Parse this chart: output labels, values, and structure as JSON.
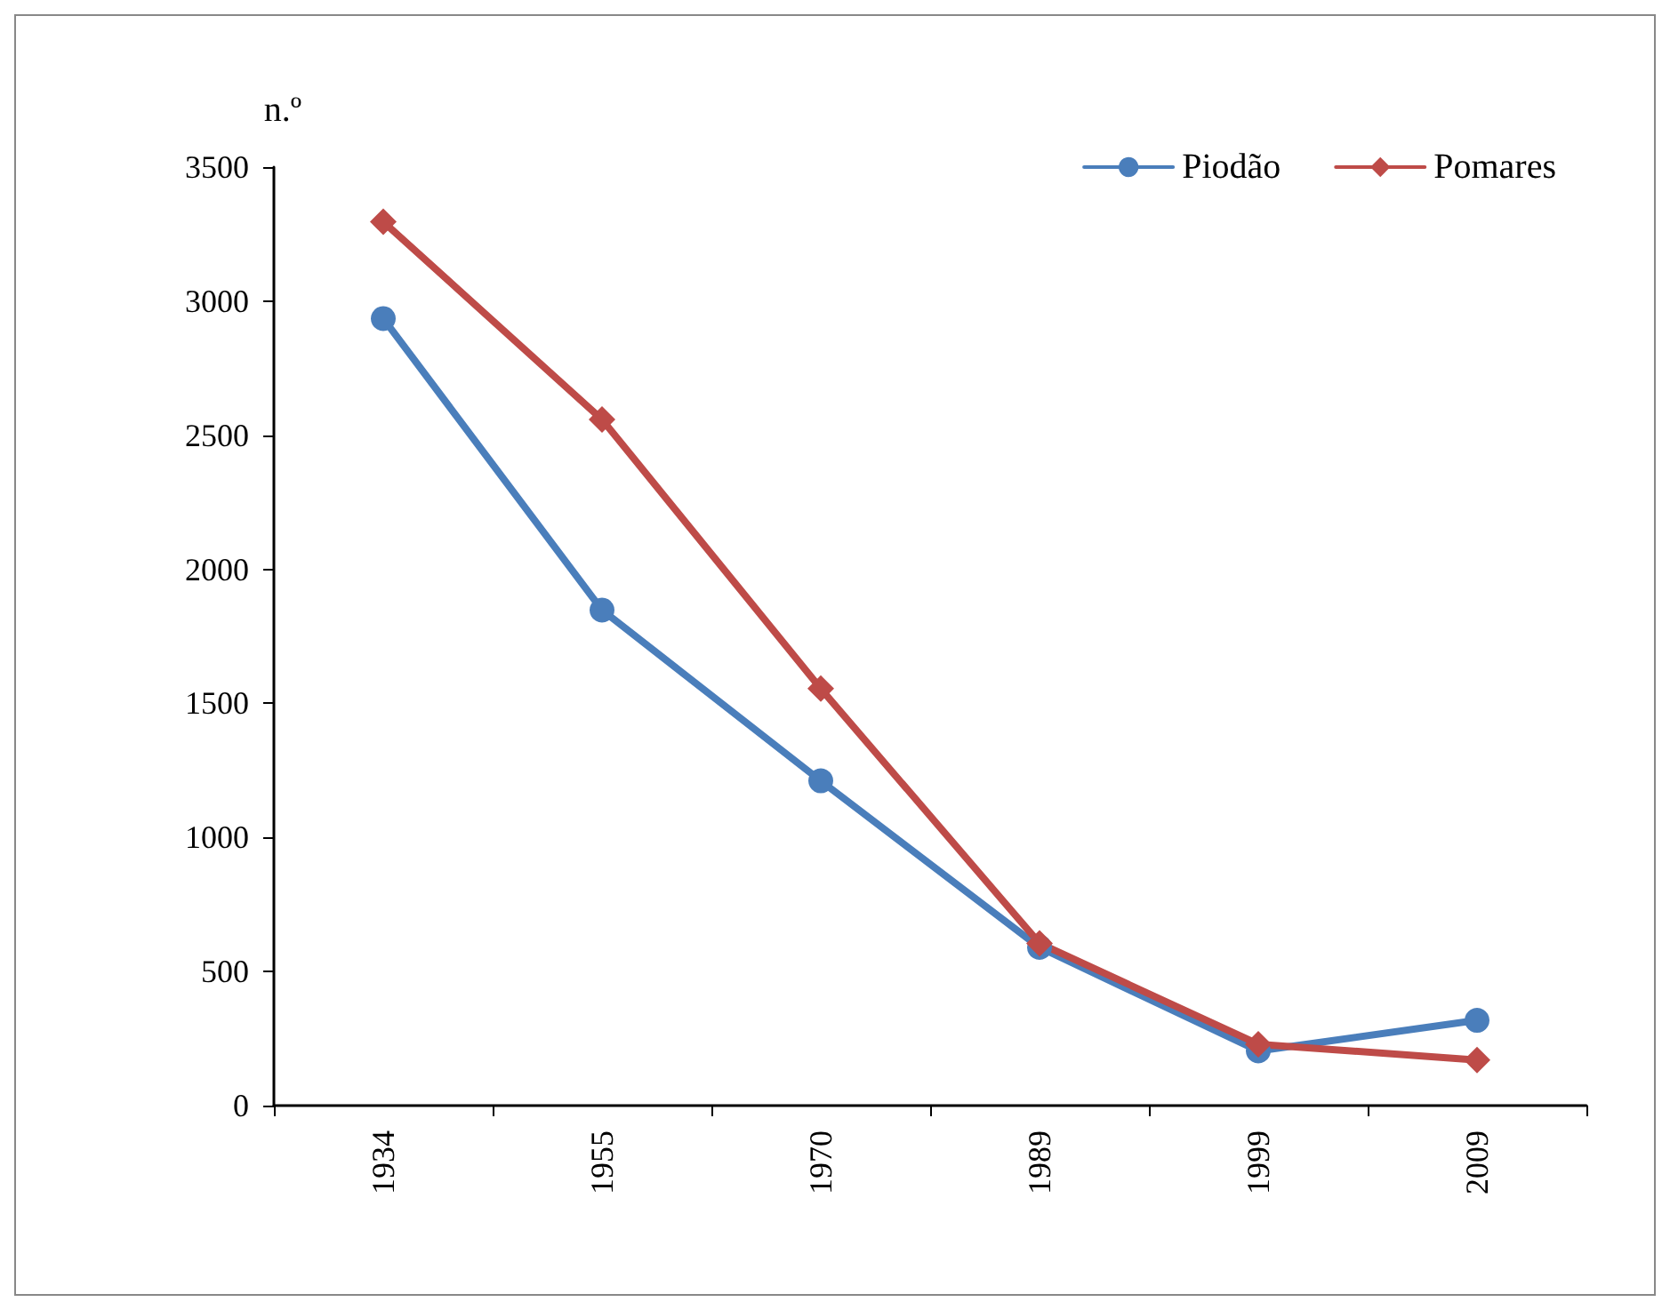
{
  "chart_data": {
    "type": "line",
    "ylabel": "n.º",
    "categories": [
      "1934",
      "1955",
      "1970",
      "1989",
      "1999",
      "2009"
    ],
    "series": [
      {
        "name": "Piodão",
        "color": "#4a7ebb",
        "marker": "circle",
        "values": [
          2935,
          1848,
          1211,
          590,
          204,
          318
        ]
      },
      {
        "name": "Pomares",
        "color": "#be4b48",
        "marker": "diamond",
        "values": [
          3296,
          2559,
          1555,
          605,
          229,
          170
        ]
      }
    ],
    "ylim": [
      0,
      3500
    ],
    "yticks": [
      0,
      500,
      1000,
      1500,
      2000,
      2500,
      3000,
      3500
    ],
    "legend": "top right",
    "grid": false,
    "line_style": "solid"
  }
}
